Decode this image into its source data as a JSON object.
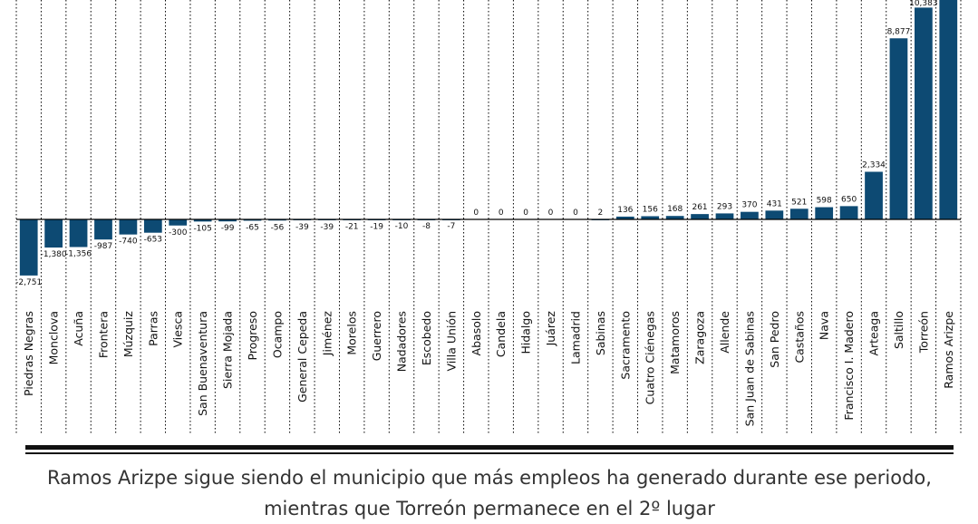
{
  "chart_data": {
    "type": "bar",
    "categories": [
      "Piedras Negras",
      "Monclova",
      "Acuña",
      "Frontera",
      "Múzquiz",
      "Parras",
      "Viesca",
      "San Buenaventura",
      "Sierra Mojada",
      "Progreso",
      "Ocampo",
      "General Cepeda",
      "Jiménez",
      "Morelos",
      "Guerrero",
      "Nadadores",
      "Escobedo",
      "Villa Unión",
      "Abasolo",
      "Candela",
      "Hidalgo",
      "Juárez",
      "Lamadrid",
      "Sabinas",
      "Sacramento",
      "Cuatro Ciénegas",
      "Matamoros",
      "Zaragoza",
      "Allende",
      "San Juan de Sabinas",
      "San Pedro",
      "Castaños",
      "Nava",
      "Francisco I. Madero",
      "Arteaga",
      "Saltillo",
      "Torreón",
      "Ramos Arizpe"
    ],
    "values": [
      -2751,
      -1380,
      -1356,
      -987,
      -740,
      -653,
      -300,
      -105,
      -99,
      -65,
      -56,
      -39,
      -39,
      -21,
      -19,
      -10,
      -8,
      -7,
      0,
      0,
      0,
      0,
      0,
      2,
      136,
      156,
      168,
      261,
      293,
      370,
      431,
      521,
      598,
      650,
      2334,
      8877,
      10383,
      12000
    ],
    "value_labels": [
      "-2,751",
      "-1,380",
      "-1,356",
      "-987",
      "-740",
      "-653",
      "-300",
      "-105",
      "-99",
      "-65",
      "-56",
      "-39",
      "-39",
      "-21",
      "-19",
      "-10",
      "-8",
      "-7",
      "0",
      "0",
      "0",
      "0",
      "0",
      "2",
      "136",
      "156",
      "168",
      "261",
      "293",
      "370",
      "431",
      "521",
      "598",
      "650",
      "2,334",
      "8,877",
      "10,383",
      ""
    ],
    "bar_color": "#0d4a73",
    "grid": "vertical dotted separators"
  },
  "caption": "Ramos Arizpe sigue siendo el municipio que más empleos ha generado durante ese periodo, mientras que Torreón permanece en el 2º lugar"
}
